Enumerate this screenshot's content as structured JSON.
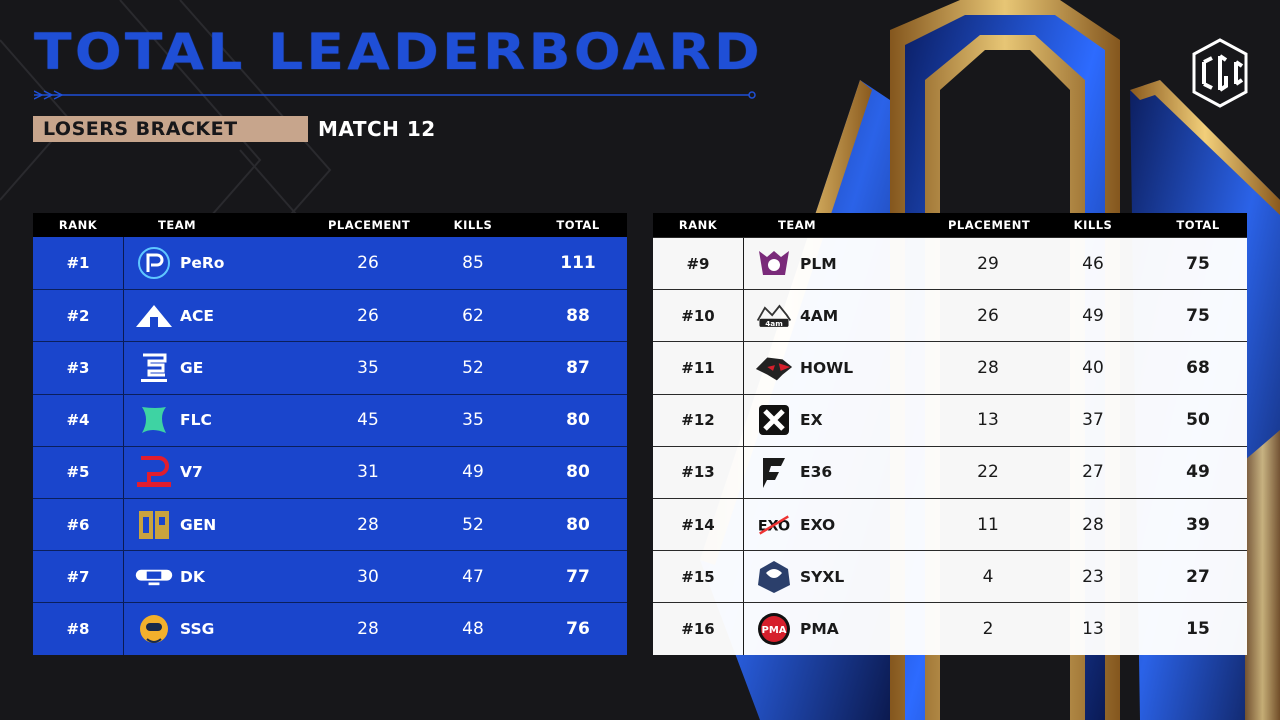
{
  "header": {
    "title": "TOTAL LEADERBOARD",
    "bracket": "LOSERS BRACKET",
    "match": "MATCH 12",
    "logo_text": "CGC"
  },
  "columns": {
    "rank": "RANK",
    "team": "TEAM",
    "placement": "PLACEMENT",
    "kills": "KILLS",
    "total": "TOTAL"
  },
  "left_rows": [
    {
      "rank": "#1",
      "team": "PeRo",
      "placement": "26",
      "kills": "85",
      "total": "111",
      "icon": "pero-logo-icon"
    },
    {
      "rank": "#2",
      "team": "ACE",
      "placement": "26",
      "kills": "62",
      "total": "88",
      "icon": "ace-logo-icon"
    },
    {
      "rank": "#3",
      "team": "GE",
      "placement": "35",
      "kills": "52",
      "total": "87",
      "icon": "ge-logo-icon"
    },
    {
      "rank": "#4",
      "team": "FLC",
      "placement": "45",
      "kills": "35",
      "total": "80",
      "icon": "flc-logo-icon"
    },
    {
      "rank": "#5",
      "team": "V7",
      "placement": "31",
      "kills": "49",
      "total": "80",
      "icon": "v7-logo-icon"
    },
    {
      "rank": "#6",
      "team": "GEN",
      "placement": "28",
      "kills": "52",
      "total": "80",
      "icon": "gen-logo-icon"
    },
    {
      "rank": "#7",
      "team": "DK",
      "placement": "30",
      "kills": "47",
      "total": "77",
      "icon": "dk-logo-icon"
    },
    {
      "rank": "#8",
      "team": "SSG",
      "placement": "28",
      "kills": "48",
      "total": "76",
      "icon": "ssg-logo-icon"
    }
  ],
  "right_rows": [
    {
      "rank": "#9",
      "team": "PLM",
      "placement": "29",
      "kills": "46",
      "total": "75",
      "icon": "plm-logo-icon"
    },
    {
      "rank": "#10",
      "team": "4AM",
      "placement": "26",
      "kills": "49",
      "total": "75",
      "icon": "4am-logo-icon"
    },
    {
      "rank": "#11",
      "team": "HOWL",
      "placement": "28",
      "kills": "40",
      "total": "68",
      "icon": "howl-logo-icon"
    },
    {
      "rank": "#12",
      "team": "EX",
      "placement": "13",
      "kills": "37",
      "total": "50",
      "icon": "ex-logo-icon"
    },
    {
      "rank": "#13",
      "team": "E36",
      "placement": "22",
      "kills": "27",
      "total": "49",
      "icon": "e36-logo-icon"
    },
    {
      "rank": "#14",
      "team": "EXO",
      "placement": "11",
      "kills": "28",
      "total": "39",
      "icon": "exo-logo-icon"
    },
    {
      "rank": "#15",
      "team": "SYXL",
      "placement": "4",
      "kills": "23",
      "total": "27",
      "icon": "syxl-logo-icon"
    },
    {
      "rank": "#16",
      "team": "PMA",
      "placement": "2",
      "kills": "13",
      "total": "15",
      "icon": "pma-logo-icon"
    }
  ],
  "colors": {
    "background": "#17171a",
    "title_blue": "#1f4fd6",
    "row_blue": "#1a45cc",
    "badge": "#c7a58c",
    "gold": "#d9a54a"
  }
}
